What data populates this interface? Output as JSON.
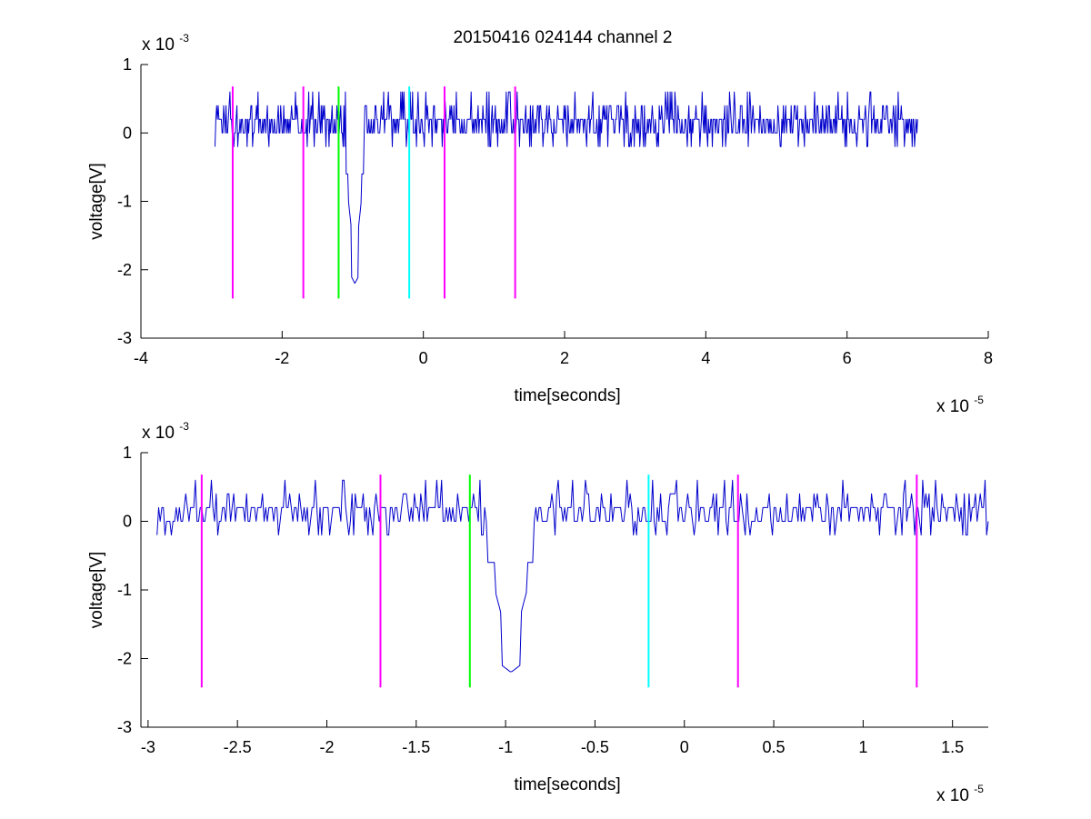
{
  "figure": {
    "title": "20150416 024144 channel 2",
    "background": "#ffffff"
  },
  "colors": {
    "signal": "#0000cc",
    "marker_magenta": "#ff00ff",
    "marker_green": "#00ff00",
    "marker_cyan": "#00ffff",
    "axes": "#000000"
  },
  "chart_data": [
    {
      "type": "line",
      "title": "20150416 024144 channel 2",
      "xlabel": "time[seconds]",
      "ylabel": "voltage[V]",
      "x_exponent": "x 10",
      "x_exponent_power": "-5",
      "y_exponent": "x 10",
      "y_exponent_power": "-3",
      "xlim": [
        -4,
        8
      ],
      "ylim": [
        -3,
        1
      ],
      "xticks": [
        -4,
        -2,
        0,
        2,
        4,
        6,
        8
      ],
      "xtick_labels": [
        "-4",
        "-2",
        "0",
        "2",
        "4",
        "6",
        "8"
      ],
      "yticks": [
        1,
        0,
        -1,
        -2,
        -3
      ],
      "ytick_labels": [
        "1",
        "0",
        "-1",
        "-2",
        "-3"
      ],
      "grid": false,
      "series": [
        {
          "color": "#0000cc",
          "description": "noisy baseline near 0 with steps of 0.2, spike to -2.2 near -1.0",
          "x_start": -2.95,
          "x_end": 7.0,
          "baseline": 0.2,
          "quantum": 0.2,
          "spike_x": -0.97,
          "spike_min": -2.2
        }
      ],
      "markers": [
        {
          "x": -2.7,
          "color": "#ff00ff",
          "y_from": -2.42,
          "y_to": 0.68
        },
        {
          "x": -1.7,
          "color": "#ff00ff",
          "y_from": -2.42,
          "y_to": 0.68
        },
        {
          "x": -1.2,
          "color": "#00ff00",
          "y_from": -2.42,
          "y_to": 0.68
        },
        {
          "x": -0.2,
          "color": "#00ffff",
          "y_from": -2.42,
          "y_to": 0.68
        },
        {
          "x": 0.3,
          "color": "#ff00ff",
          "y_from": -2.42,
          "y_to": 0.68
        },
        {
          "x": 1.3,
          "color": "#ff00ff",
          "y_from": -2.42,
          "y_to": 0.68
        }
      ]
    },
    {
      "type": "line",
      "title": "",
      "xlabel": "time[seconds]",
      "ylabel": "voltage[V]",
      "x_exponent": "x 10",
      "x_exponent_power": "-5",
      "y_exponent": "x 10",
      "y_exponent_power": "-3",
      "xlim": [
        -3.04,
        1.7
      ],
      "ylim": [
        -3,
        1
      ],
      "xticks": [
        -3,
        -2.5,
        -2,
        -1.5,
        -1,
        -0.5,
        0,
        0.5,
        1,
        1.5
      ],
      "xtick_labels": [
        "-3",
        "-2.5",
        "-2",
        "-1.5",
        "-1",
        "-0.5",
        "0",
        "0.5",
        "1",
        "1.5"
      ],
      "yticks": [
        1,
        0,
        -1,
        -2,
        -3
      ],
      "ytick_labels": [
        "1",
        "0",
        "-1",
        "-2",
        "-3"
      ],
      "grid": false,
      "series": [
        {
          "color": "#0000cc",
          "description": "zoomed view: noisy baseline near 0, spike to -2.2 near -1.0",
          "x_start": -2.95,
          "x_end": 1.7,
          "baseline": 0.2,
          "quantum": 0.2,
          "spike_x": -0.97,
          "spike_min": -2.2
        }
      ],
      "markers": [
        {
          "x": -2.7,
          "color": "#ff00ff",
          "y_from": -2.42,
          "y_to": 0.68
        },
        {
          "x": -1.7,
          "color": "#ff00ff",
          "y_from": -2.42,
          "y_to": 0.68
        },
        {
          "x": -1.2,
          "color": "#00ff00",
          "y_from": -2.42,
          "y_to": 0.68
        },
        {
          "x": -0.2,
          "color": "#00ffff",
          "y_from": -2.42,
          "y_to": 0.68
        },
        {
          "x": 0.3,
          "color": "#ff00ff",
          "y_from": -2.42,
          "y_to": 0.68
        },
        {
          "x": 1.3,
          "color": "#ff00ff",
          "y_from": -2.42,
          "y_to": 0.68
        }
      ]
    }
  ]
}
